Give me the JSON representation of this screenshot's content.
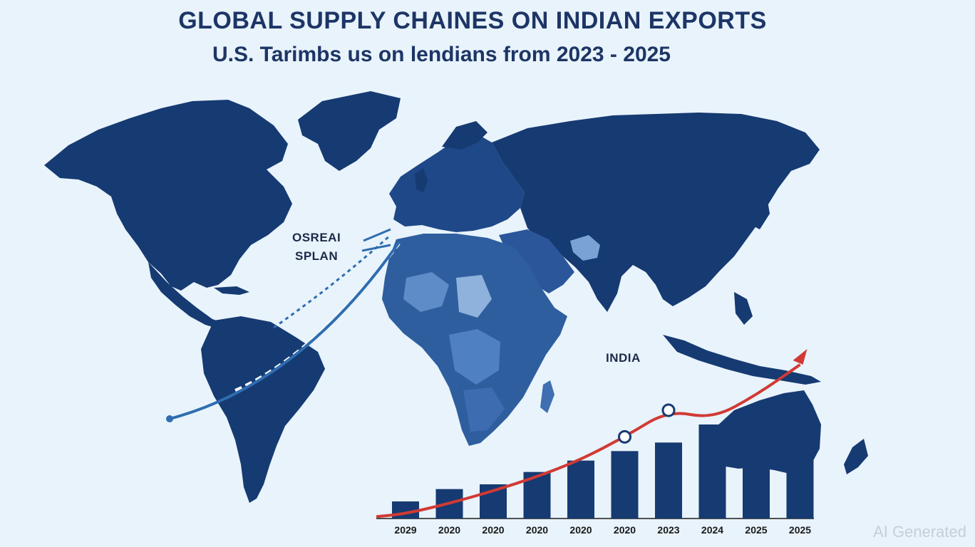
{
  "title": "GLOBAL SUPPLY CHAINES ON INDIAN EXPORTS",
  "subtitle": "U.S. Tarimbs us on lendians from 2023 - 2025",
  "map_labels": {
    "route_label_line1": "OSREAI",
    "route_label_line2": "SPLAN",
    "india_label": "INDIA"
  },
  "watermark": "AI Generated",
  "colors": {
    "background": "#e8f3fb",
    "land": "#163a72",
    "land_light": "#3f6fb0",
    "bars": "#163a72",
    "trend_line": "#d13a34",
    "route_line": "#2f6db0",
    "title": "#1d3566"
  },
  "chart_data": {
    "type": "bar",
    "categories": [
      "2029",
      "2020",
      "2020",
      "2020",
      "2020",
      "2020",
      "2023",
      "2024",
      "2025",
      "2025"
    ],
    "values": [
      1.8,
      3.1,
      3.6,
      4.9,
      6.1,
      7.1,
      8.0,
      9.9,
      9.6,
      9.5
    ],
    "trend_line": [
      0.5,
      1.6,
      2.9,
      4.4,
      6.2,
      8.6,
      11.4,
      10.5,
      13.0,
      16.2
    ],
    "ylim": [
      0,
      18
    ],
    "title": "",
    "xlabel": "",
    "ylabel": ""
  }
}
